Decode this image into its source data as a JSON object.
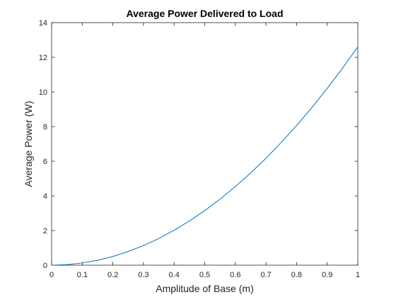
{
  "chart_data": {
    "type": "line",
    "title": "Average Power Delivered to Load",
    "xlabel": "Amplitude of Base (m)",
    "ylabel": "Average Power (W)",
    "xlim": [
      0,
      1
    ],
    "ylim": [
      0,
      14
    ],
    "xticks": [
      "0",
      "0.1",
      "0.2",
      "0.3",
      "0.4",
      "0.5",
      "0.6",
      "0.7",
      "0.8",
      "0.9",
      "1"
    ],
    "yticks": [
      "0",
      "2",
      "4",
      "6",
      "8",
      "10",
      "12",
      "14"
    ],
    "grid": false,
    "legend": "none",
    "series": [
      {
        "color": "#0072bd",
        "x": [
          0,
          0.05,
          0.1,
          0.15,
          0.2,
          0.25,
          0.3,
          0.35,
          0.4,
          0.45,
          0.5,
          0.55,
          0.6,
          0.65,
          0.7,
          0.75,
          0.8,
          0.85,
          0.9,
          0.95,
          1.0
        ],
        "y": [
          0,
          0.03,
          0.13,
          0.28,
          0.5,
          0.79,
          1.13,
          1.54,
          2.02,
          2.55,
          3.15,
          3.81,
          4.54,
          5.32,
          6.17,
          7.09,
          8.06,
          9.1,
          10.2,
          11.37,
          12.6
        ]
      }
    ]
  }
}
